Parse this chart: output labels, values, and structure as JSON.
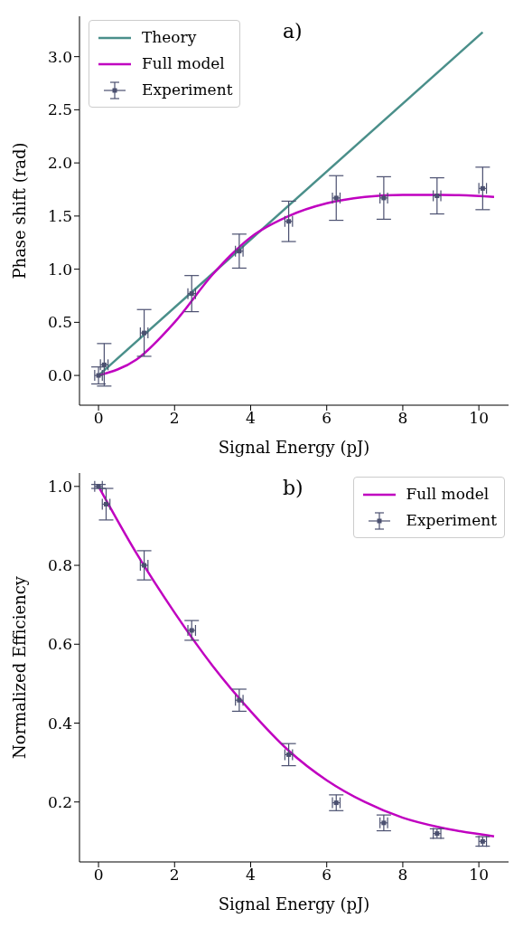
{
  "chart_data": [
    {
      "type": "line",
      "xlabel": "Signal Energy (pJ)",
      "ylabel": "Phase shift (rad)",
      "annotations": [
        "a)"
      ],
      "xlim": [
        -0.5,
        10.78
      ],
      "ylim": [
        -0.28,
        3.38
      ],
      "xticks": [
        0,
        2,
        4,
        6,
        8,
        10
      ],
      "yticks": [
        {
          "value": 0,
          "label": "0.0"
        },
        {
          "value": 0.5,
          "label": "0.5"
        },
        {
          "value": 1,
          "label": "1.0"
        },
        {
          "value": 1.5,
          "label": "1.5"
        },
        {
          "value": 2,
          "label": "2.0"
        },
        {
          "value": 2.5,
          "label": "2.5"
        },
        {
          "value": 3,
          "label": "3.0"
        }
      ],
      "legend": "top left",
      "series": [
        {
          "name": "Theory",
          "type": "line",
          "color": "#4a8f8a",
          "x": [
            0,
            10.1
          ],
          "values": [
            0,
            3.23
          ]
        },
        {
          "name": "Full model",
          "type": "line",
          "color": "#c000c0",
          "x": [
            0,
            1,
            2,
            3,
            4,
            5,
            6,
            7,
            8,
            9,
            10.4
          ],
          "values": [
            0,
            0.15,
            0.5,
            0.95,
            1.3,
            1.5,
            1.62,
            1.68,
            1.7,
            1.7,
            1.68
          ]
        },
        {
          "name": "Experiment",
          "type": "scatter",
          "marker": "square",
          "color": "#4b5070",
          "x": [
            0,
            0.15,
            1.2,
            2.45,
            3.7,
            5,
            6.25,
            7.5,
            8.9,
            10.1
          ],
          "values": [
            0,
            0.1,
            0.4,
            0.77,
            1.17,
            1.45,
            1.67,
            1.67,
            1.69,
            1.76
          ],
          "errors": [
            0.08,
            0.2,
            0.22,
            0.17,
            0.16,
            0.19,
            0.21,
            0.2,
            0.17,
            0.2
          ],
          "xerrors": [
            0.1,
            0.1,
            0.1,
            0.1,
            0.1,
            0.1,
            0.1,
            0.1,
            0.1,
            0.1
          ]
        }
      ]
    },
    {
      "type": "line",
      "xlabel": "Signal Energy (pJ)",
      "ylabel": "Normalized Efficiency",
      "annotations": [
        "b)"
      ],
      "xlim": [
        -0.5,
        10.78
      ],
      "ylim": [
        0.048,
        1.034
      ],
      "xticks": [
        0,
        2,
        4,
        6,
        8,
        10
      ],
      "yticks": [
        {
          "value": 0.2,
          "label": "0.2"
        },
        {
          "value": 0.4,
          "label": "0.4"
        },
        {
          "value": 0.6,
          "label": "0.6"
        },
        {
          "value": 0.8,
          "label": "0.8"
        },
        {
          "value": 1,
          "label": "1.0"
        }
      ],
      "legend": "top right",
      "series": [
        {
          "name": "Full model",
          "type": "line",
          "color": "#c000c0",
          "x": [
            0,
            1,
            2,
            3,
            4,
            5,
            6,
            7,
            8,
            9,
            10.4
          ],
          "values": [
            1,
            0.83,
            0.68,
            0.545,
            0.43,
            0.33,
            0.255,
            0.2,
            0.16,
            0.135,
            0.113
          ]
        },
        {
          "name": "Experiment",
          "type": "scatter",
          "marker": "square",
          "color": "#4b5070",
          "x": [
            0,
            0.2,
            1.2,
            2.45,
            3.7,
            5,
            6.25,
            7.5,
            8.9,
            10.1
          ],
          "values": [
            1,
            0.955,
            0.8,
            0.635,
            0.458,
            0.32,
            0.198,
            0.147,
            0.12,
            0.1
          ],
          "errors": [
            0.005,
            0.04,
            0.037,
            0.025,
            0.028,
            0.028,
            0.02,
            0.02,
            0.012,
            0.012
          ],
          "xerrors": [
            0.1,
            0.1,
            0.1,
            0.1,
            0.1,
            0.1,
            0.1,
            0.1,
            0.1,
            0.1
          ]
        }
      ]
    }
  ]
}
